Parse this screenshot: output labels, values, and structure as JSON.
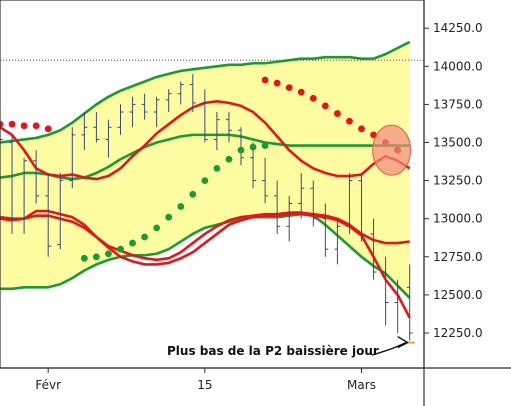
{
  "chart_data": {
    "type": "line",
    "title": "",
    "xlabel": "",
    "ylabel": "",
    "ylim": [
      12050,
      14400
    ],
    "x_ticks": [
      {
        "label": "Févr",
        "bar": 4
      },
      {
        "label": "15",
        "bar": 17
      },
      {
        "label": "Mars",
        "bar": 30
      }
    ],
    "y_ticks": [
      12250.0,
      12500.0,
      12750.0,
      13000.0,
      13250.0,
      13500.0,
      13750.0,
      14000.0,
      14250.0
    ],
    "y_tick_labels": [
      "12250.0",
      "12500.0",
      "12750.0",
      "13000.0",
      "13250.0",
      "13500.0",
      "13750.0",
      "14000.0",
      "14250.0"
    ],
    "reference_line": {
      "value": 14040,
      "style": "dotted"
    },
    "n_bars": 35,
    "series": [
      {
        "kind": "band",
        "values": [
          [
            13500,
            12540
          ],
          [
            13510,
            12540
          ],
          [
            13520,
            12550
          ],
          [
            13530,
            12550
          ],
          [
            13550,
            12550
          ],
          [
            13580,
            12570
          ],
          [
            13630,
            12610
          ],
          [
            13690,
            12660
          ],
          [
            13750,
            12700
          ],
          [
            13800,
            12730
          ],
          [
            13840,
            12750
          ],
          [
            13870,
            12760
          ],
          [
            13900,
            12760
          ],
          [
            13930,
            12770
          ],
          [
            13950,
            12800
          ],
          [
            13970,
            12850
          ],
          [
            13980,
            12900
          ],
          [
            13990,
            12940
          ],
          [
            14000,
            12960
          ],
          [
            14010,
            12980
          ],
          [
            14010,
            13000
          ],
          [
            14020,
            13010
          ],
          [
            14020,
            13010
          ],
          [
            14030,
            13010
          ],
          [
            14040,
            13020
          ],
          [
            14050,
            13030
          ],
          [
            14050,
            13020
          ],
          [
            14060,
            12960
          ],
          [
            14060,
            12890
          ],
          [
            14060,
            12820
          ],
          [
            14050,
            12750
          ],
          [
            14050,
            12690
          ],
          [
            14080,
            12640
          ],
          [
            14120,
            12560
          ],
          [
            14160,
            12480
          ]
        ]
      },
      {
        "kind": "line",
        "color": "#1a9a35",
        "values": [
          13500,
          13510,
          13520,
          13530,
          13550,
          13580,
          13630,
          13690,
          13750,
          13800,
          13840,
          13870,
          13900,
          13930,
          13950,
          13970,
          13980,
          13990,
          14000,
          14010,
          14010,
          14020,
          14020,
          14030,
          14040,
          14050,
          14050,
          14060,
          14060,
          14060,
          14050,
          14050,
          14080,
          14120,
          14160
        ]
      },
      {
        "kind": "line",
        "color": "#1a9a35",
        "values": [
          12540,
          12540,
          12550,
          12550,
          12550,
          12570,
          12610,
          12660,
          12700,
          12730,
          12750,
          12760,
          12760,
          12770,
          12800,
          12850,
          12900,
          12940,
          12960,
          12980,
          13000,
          13010,
          13010,
          13010,
          13020,
          13030,
          13020,
          12960,
          12890,
          12820,
          12750,
          12690,
          12640,
          12560,
          12480
        ]
      },
      {
        "kind": "line",
        "color": "#1a9a35",
        "values": [
          13270,
          13280,
          13300,
          13300,
          13290,
          13270,
          13260,
          13270,
          13300,
          13340,
          13390,
          13430,
          13470,
          13500,
          13520,
          13540,
          13550,
          13550,
          13550,
          13550,
          13540,
          13520,
          13500,
          13490,
          13480,
          13480,
          13480,
          13480,
          13480,
          13480,
          13480,
          13480,
          13480,
          13480,
          13480
        ]
      },
      {
        "kind": "line",
        "color": "#e8141b",
        "values": [
          13600,
          13550,
          13450,
          13330,
          13290,
          13280,
          13290,
          13270,
          13260,
          13280,
          13330,
          13410,
          13480,
          13560,
          13620,
          13680,
          13730,
          13760,
          13770,
          13760,
          13740,
          13700,
          13630,
          13540,
          13450,
          13380,
          13330,
          13300,
          13280,
          13280,
          13290,
          13360,
          13410,
          13380,
          13330
        ]
      },
      {
        "kind": "line",
        "color": "#e8141b",
        "values": [
          13000,
          12990,
          13000,
          13050,
          13050,
          13030,
          13010,
          12960,
          12880,
          12810,
          12750,
          12720,
          12700,
          12700,
          12710,
          12740,
          12780,
          12840,
          12900,
          12960,
          12990,
          13010,
          13020,
          13020,
          13030,
          13030,
          13020,
          13010,
          12990,
          12950,
          12890,
          12750,
          12600,
          12500,
          12350
        ]
      },
      {
        "kind": "line",
        "color": "#e8141b",
        "values": [
          13010,
          13000,
          13000,
          13020,
          13020,
          13000,
          12980,
          12940,
          12880,
          12820,
          12790,
          12760,
          12740,
          12730,
          12740,
          12780,
          12840,
          12900,
          12950,
          12990,
          13010,
          13020,
          13030,
          13030,
          13040,
          13040,
          13030,
          13020,
          13000,
          12960,
          12900,
          12860,
          12840,
          12840,
          12850
        ]
      },
      {
        "kind": "ohlc",
        "color": "#3a4a78",
        "values": [
          [
            12950,
            13600,
            12880,
            13520
          ],
          [
            13500,
            13550,
            12900,
            13000
          ],
          [
            13000,
            13400,
            12900,
            13380
          ],
          [
            13380,
            13450,
            13100,
            13150
          ],
          [
            13150,
            13300,
            12750,
            12820
          ],
          [
            12830,
            13300,
            12800,
            13250
          ],
          [
            13250,
            13600,
            13200,
            13550
          ],
          [
            13550,
            13700,
            13450,
            13600
          ],
          [
            13600,
            13700,
            13500,
            13520
          ],
          [
            13520,
            13650,
            13400,
            13600
          ],
          [
            13600,
            13750,
            13550,
            13700
          ],
          [
            13700,
            13800,
            13600,
            13750
          ],
          [
            13750,
            13820,
            13650,
            13700
          ],
          [
            13700,
            13800,
            13600,
            13780
          ],
          [
            13780,
            13850,
            13700,
            13820
          ],
          [
            13820,
            13900,
            13750,
            13880
          ],
          [
            13880,
            13950,
            13700,
            13760
          ],
          [
            13760,
            13850,
            13500,
            13520
          ],
          [
            13520,
            13700,
            13450,
            13650
          ],
          [
            13650,
            13700,
            13500,
            13580
          ],
          [
            13580,
            13600,
            13350,
            13400
          ],
          [
            13400,
            13500,
            13200,
            13250
          ],
          [
            13250,
            13400,
            13100,
            13150
          ],
          [
            13150,
            13250,
            12900,
            12950
          ],
          [
            12950,
            13150,
            12850,
            13100
          ],
          [
            13100,
            13300,
            13000,
            13200
          ],
          [
            13200,
            13250,
            12950,
            13000
          ],
          [
            13000,
            13100,
            12750,
            12800
          ],
          [
            12800,
            13000,
            12700,
            12950
          ],
          [
            12950,
            13300,
            12900,
            13250
          ],
          [
            13250,
            13300,
            12850,
            12900
          ],
          [
            12900,
            13000,
            12600,
            12650
          ],
          [
            12650,
            12750,
            12300,
            12450
          ],
          [
            12450,
            12600,
            12250,
            12550
          ],
          [
            12550,
            12700,
            12200,
            12250
          ]
        ]
      },
      {
        "kind": "dots",
        "color": "#1a9a35",
        "points": [
          [
            7,
            12740
          ],
          [
            8,
            12750
          ],
          [
            9,
            12770
          ],
          [
            10,
            12800
          ],
          [
            11,
            12840
          ],
          [
            12,
            12880
          ],
          [
            13,
            12940
          ],
          [
            14,
            13010
          ],
          [
            15,
            13080
          ],
          [
            16,
            13160
          ],
          [
            17,
            13250
          ],
          [
            18,
            13330
          ],
          [
            19,
            13390
          ],
          [
            20,
            13450
          ],
          [
            21,
            13470
          ],
          [
            22,
            13480
          ]
        ]
      },
      {
        "kind": "dots",
        "color": "#e8141b",
        "points": [
          [
            0,
            13620
          ],
          [
            1,
            13620
          ],
          [
            2,
            13610
          ],
          [
            3,
            13610
          ],
          [
            4,
            13590
          ],
          [
            22,
            13910
          ],
          [
            23,
            13890
          ],
          [
            24,
            13860
          ],
          [
            25,
            13830
          ],
          [
            26,
            13790
          ],
          [
            27,
            13740
          ],
          [
            28,
            13690
          ],
          [
            29,
            13640
          ],
          [
            30,
            13590
          ],
          [
            31,
            13550
          ],
          [
            32,
            13500
          ],
          [
            33,
            13450
          ]
        ]
      }
    ],
    "annotations": [
      {
        "text": "Plus bas de la P2 baissière jour",
        "arrow_to": {
          "bar": 34,
          "value": 12220
        }
      },
      {
        "shape": "ellipse",
        "color": "#f28a7a",
        "center": {
          "bar": 32.5,
          "value": 13450
        }
      }
    ]
  }
}
